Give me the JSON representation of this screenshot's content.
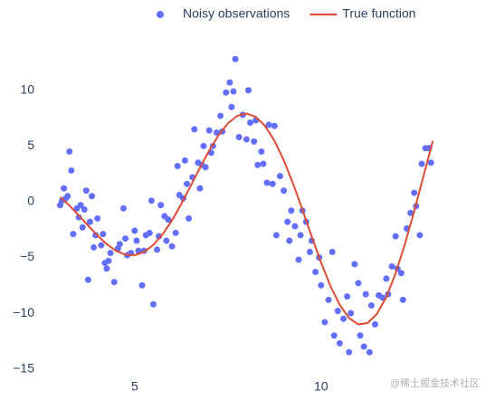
{
  "chart_data": {
    "type": "scatter_line",
    "series": [
      {
        "name": "Noisy observations",
        "color": "#636efa",
        "mode": "markers",
        "x": [
          3.0,
          3.05,
          3.1,
          3.15,
          3.2,
          3.25,
          3.3,
          3.35,
          3.45,
          3.5,
          3.55,
          3.6,
          3.65,
          3.7,
          3.75,
          3.8,
          3.85,
          3.9,
          3.95,
          4.0,
          4.1,
          4.15,
          4.2,
          4.25,
          4.3,
          4.35,
          4.45,
          4.55,
          4.6,
          4.7,
          4.75,
          4.8,
          4.9,
          5.0,
          5.05,
          5.1,
          5.2,
          5.25,
          5.3,
          5.4,
          5.45,
          5.5,
          5.6,
          5.65,
          5.7,
          5.8,
          5.85,
          5.9,
          6.0,
          6.1,
          6.15,
          6.2,
          6.3,
          6.35,
          6.4,
          6.45,
          6.55,
          6.6,
          6.7,
          6.75,
          6.8,
          6.85,
          6.9,
          7.0,
          7.05,
          7.1,
          7.2,
          7.3,
          7.35,
          7.45,
          7.55,
          7.6,
          7.65,
          7.7,
          7.8,
          7.9,
          8.0,
          8.05,
          8.1,
          8.2,
          8.25,
          8.3,
          8.4,
          8.45,
          8.55,
          8.6,
          8.7,
          8.75,
          8.8,
          8.9,
          9.0,
          9.1,
          9.15,
          9.2,
          9.3,
          9.4,
          9.45,
          9.5,
          9.6,
          9.7,
          9.75,
          9.85,
          9.95,
          10.0,
          10.1,
          10.2,
          10.3,
          10.35,
          10.45,
          10.5,
          10.6,
          10.7,
          10.75,
          10.8,
          10.9,
          11.0,
          11.05,
          11.15,
          11.2,
          11.3,
          11.35,
          11.45,
          11.55,
          11.65,
          11.75,
          11.8,
          11.9,
          12.0,
          12.05,
          12.15,
          12.2,
          12.3,
          12.4,
          12.5,
          12.55,
          12.65,
          12.7,
          12.8,
          12.9,
          12.95
        ],
        "values": [
          -0.3,
          0.1,
          1.2,
          0.3,
          0.5,
          4.5,
          2.8,
          -2.9,
          -0.6,
          -1.4,
          -0.3,
          -2.3,
          -0.7,
          1.0,
          -7.0,
          -1.8,
          0.5,
          -4.1,
          -3.0,
          -1.5,
          -3.9,
          -2.9,
          -5.5,
          -6.0,
          -5.3,
          -4.6,
          -7.2,
          -4.2,
          -3.8,
          -0.6,
          -3.3,
          -4.8,
          -4.6,
          -2.6,
          -3.5,
          -4.4,
          -7.5,
          -4.4,
          -3.0,
          -2.8,
          0.1,
          -9.2,
          -4.3,
          -3.1,
          -0.3,
          -1.3,
          -3.5,
          -1.6,
          -4.0,
          -2.8,
          3.2,
          0.6,
          0.3,
          3.7,
          1.6,
          -1.5,
          2.2,
          6.5,
          3.5,
          1.2,
          3.3,
          5.0,
          3.1,
          6.4,
          4.4,
          5.0,
          6.2,
          7.7,
          6.3,
          9.8,
          10.7,
          8.5,
          9.9,
          12.8,
          5.8,
          7.8,
          5.6,
          10.0,
          7.1,
          5.4,
          7.3,
          3.3,
          4.5,
          3.4,
          1.7,
          6.9,
          1.6,
          6.8,
          -3.0,
          2.3,
          1.0,
          -1.8,
          -3.5,
          -0.8,
          -2.2,
          -5.2,
          -3.0,
          -0.8,
          -1.8,
          -4.5,
          -3.5,
          -6.3,
          -5.0,
          -7.5,
          -10.8,
          -8.8,
          -4.5,
          -12.0,
          -9.8,
          -12.7,
          -10.5,
          -8.5,
          -13.5,
          -10.0,
          -5.6,
          -7.3,
          -12.0,
          -13.0,
          -8.3,
          -13.5,
          -9.3,
          -11.0,
          -8.4,
          -8.6,
          -6.9,
          -8.3,
          -5.8,
          -3.1,
          -6.0,
          -6.4,
          -8.8,
          -2.4,
          -1.0,
          0.8,
          -0.4,
          -3.0,
          3.4,
          4.8,
          4.8,
          3.5
        ]
      },
      {
        "name": "True function",
        "color": "#dc4b34",
        "mode": "lines",
        "x": [
          3.0,
          3.25,
          3.5,
          3.75,
          4.0,
          4.25,
          4.5,
          4.75,
          5.0,
          5.25,
          5.5,
          5.75,
          6.0,
          6.25,
          6.5,
          6.75,
          7.0,
          7.25,
          7.5,
          7.75,
          8.0,
          8.25,
          8.5,
          8.75,
          9.0,
          9.25,
          9.5,
          9.75,
          10.0,
          10.25,
          10.5,
          10.75,
          11.0,
          11.25,
          11.5,
          11.75,
          12.0,
          12.25,
          12.5,
          12.75,
          13.0
        ],
        "values": [
          0.423,
          -0.352,
          -1.228,
          -2.144,
          -3.027,
          -3.804,
          -4.399,
          -4.747,
          -4.795,
          -4.509,
          -3.88,
          -2.923,
          -1.676,
          -0.207,
          1.398,
          3.038,
          4.599,
          5.967,
          7.035,
          7.708,
          7.915,
          7.611,
          6.787,
          5.466,
          3.709,
          1.612,
          -0.714,
          -3.115,
          -5.44,
          -7.546,
          -9.237,
          -10.428,
          -11.0,
          -10.889,
          -10.068,
          -8.566,
          -6.439,
          -3.816,
          -0.829,
          2.322,
          5.463
        ]
      }
    ],
    "xlim": [
      2.6,
      13.6
    ],
    "ylim": [
      -16,
      15.5
    ],
    "xticks": [
      5,
      10
    ],
    "yticks": [
      {
        "value": -15,
        "label": "−15"
      },
      {
        "value": -10,
        "label": "−10"
      },
      {
        "value": -5,
        "label": "−5"
      },
      0,
      5,
      10
    ],
    "grid": false,
    "legend": "top",
    "watermark": "@稀土掘金技术社区"
  }
}
